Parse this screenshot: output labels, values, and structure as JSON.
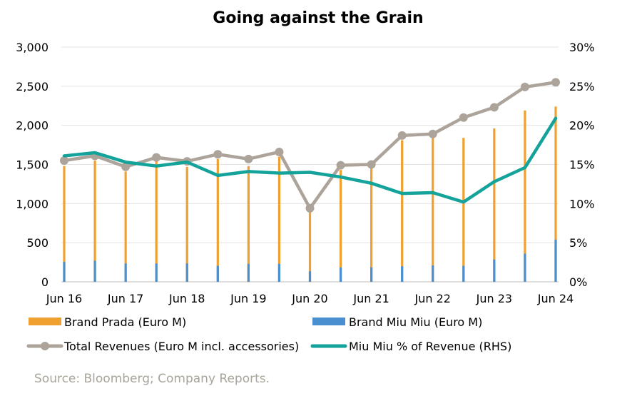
{
  "chart_data": {
    "type": "bar",
    "title": "Going against the Grain",
    "source": "Source: Bloomberg; Company Reports.",
    "x_tick_labels": [
      "Jun 16",
      "Jun 17",
      "Jun 18",
      "Jun 19",
      "Jun 20",
      "Jun 21",
      "Jun 22",
      "Jun 23",
      "Jun 24"
    ],
    "y_left": {
      "ylim": [
        0,
        3000
      ],
      "ticks": [
        "0",
        "500",
        "1,000",
        "1,500",
        "2,000",
        "2,500",
        "3,000"
      ]
    },
    "y_right": {
      "ylim": [
        0,
        30
      ],
      "ticks": [
        "0%",
        "5%",
        "10%",
        "15%",
        "20%",
        "25%",
        "30%"
      ]
    },
    "grid": "horizontal",
    "legend_position": "bottom",
    "periods": [
      "Jun 16",
      "Dec 16",
      "Jun 17",
      "Dec 17",
      "Jun 18",
      "Dec 18",
      "Jun 19",
      "Dec 19",
      "Jun 20",
      "Dec 20",
      "Jun 21",
      "Dec 21",
      "Jun 22",
      "Dec 22",
      "Jun 23",
      "Dec 23",
      "Jun 24"
    ],
    "series": [
      {
        "name": "Brand Prada (Euro M)",
        "type": "bar",
        "axis": "left",
        "color": "#f0a030",
        "values": [
          1480,
          1550,
          1410,
          1540,
          1470,
          1570,
          1480,
          1600,
          950,
          1430,
          1500,
          1810,
          1870,
          1840,
          1960,
          2190,
          2240
        ]
      },
      {
        "name": "Brand Miu Miu (Euro M)",
        "type": "bar",
        "axis": "left",
        "color": "#4a90d0",
        "values": [
          255,
          270,
          235,
          235,
          235,
          205,
          230,
          230,
          135,
          185,
          185,
          200,
          210,
          205,
          285,
          360,
          540
        ]
      },
      {
        "name": "Total Revenues (Euro M incl. accessories)",
        "type": "line",
        "axis": "left",
        "color": "#aca49a",
        "marker": "circle",
        "values": [
          1550,
          1610,
          1470,
          1590,
          1540,
          1630,
          1570,
          1660,
          940,
          1490,
          1500,
          1870,
          1890,
          2100,
          2230,
          2490,
          2550
        ]
      },
      {
        "name": "Miu Miu % of Revenue (RHS)",
        "type": "line",
        "axis": "right",
        "color": "#14a39a",
        "values": [
          16.1,
          16.5,
          15.3,
          14.8,
          15.3,
          13.6,
          14.1,
          13.9,
          14.0,
          13.4,
          12.6,
          11.3,
          11.4,
          10.2,
          12.8,
          14.6,
          20.9
        ]
      }
    ]
  }
}
